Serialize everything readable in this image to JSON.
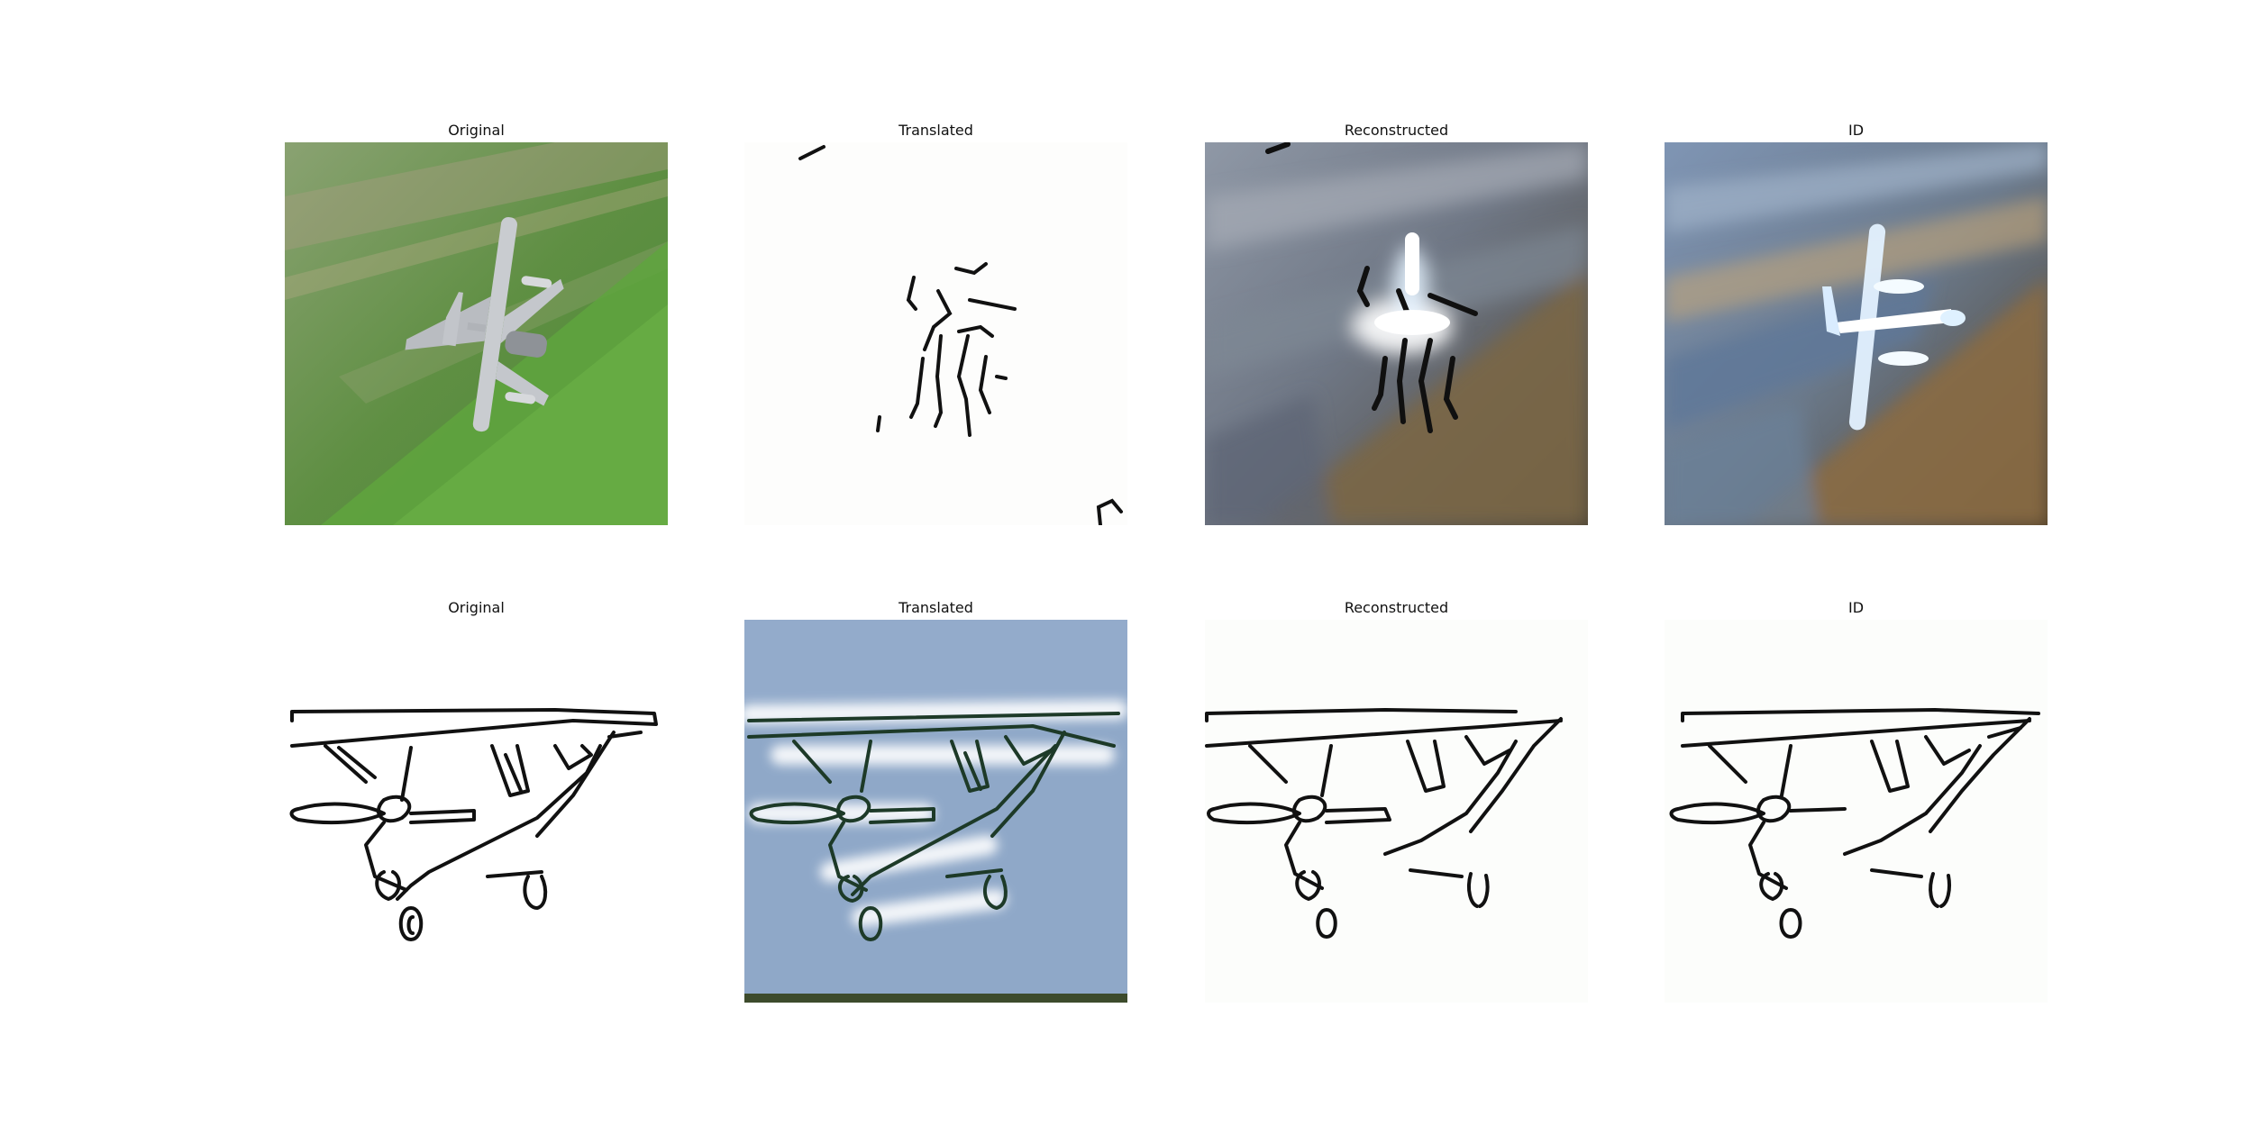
{
  "figure": {
    "rows": [
      {
        "panels": [
          {
            "title": "Original",
            "content": "photo of grey jet aircraft banking over green hillside"
          },
          {
            "title": "Translated",
            "content": "sparse black edge strokes on white background"
          },
          {
            "title": "Reconstructed",
            "content": "blurry blue-grey and brown terrain with white aircraft shape and black strokes"
          },
          {
            "title": "ID",
            "content": "blurry blue and brown terrain with white aircraft silhouette"
          }
        ]
      },
      {
        "panels": [
          {
            "title": "Original",
            "content": "black line drawing of propeller airplane on white"
          },
          {
            "title": "Translated",
            "content": "line drawing of propeller airplane rendered on pale blue sky"
          },
          {
            "title": "Reconstructed",
            "content": "black line drawing of propeller airplane on white"
          },
          {
            "title": "ID",
            "content": "black line drawing of propeller airplane on white"
          }
        ]
      }
    ]
  },
  "colors": {
    "grass_dark": "#4f8a3a",
    "grass_light": "#7fb25a",
    "jet_grey": "#c9ccd0",
    "sky_blue": "#8fa8c8",
    "terrain_brown": "#7a6647",
    "terrain_blue": "#5f7898",
    "ink": "#111111"
  }
}
